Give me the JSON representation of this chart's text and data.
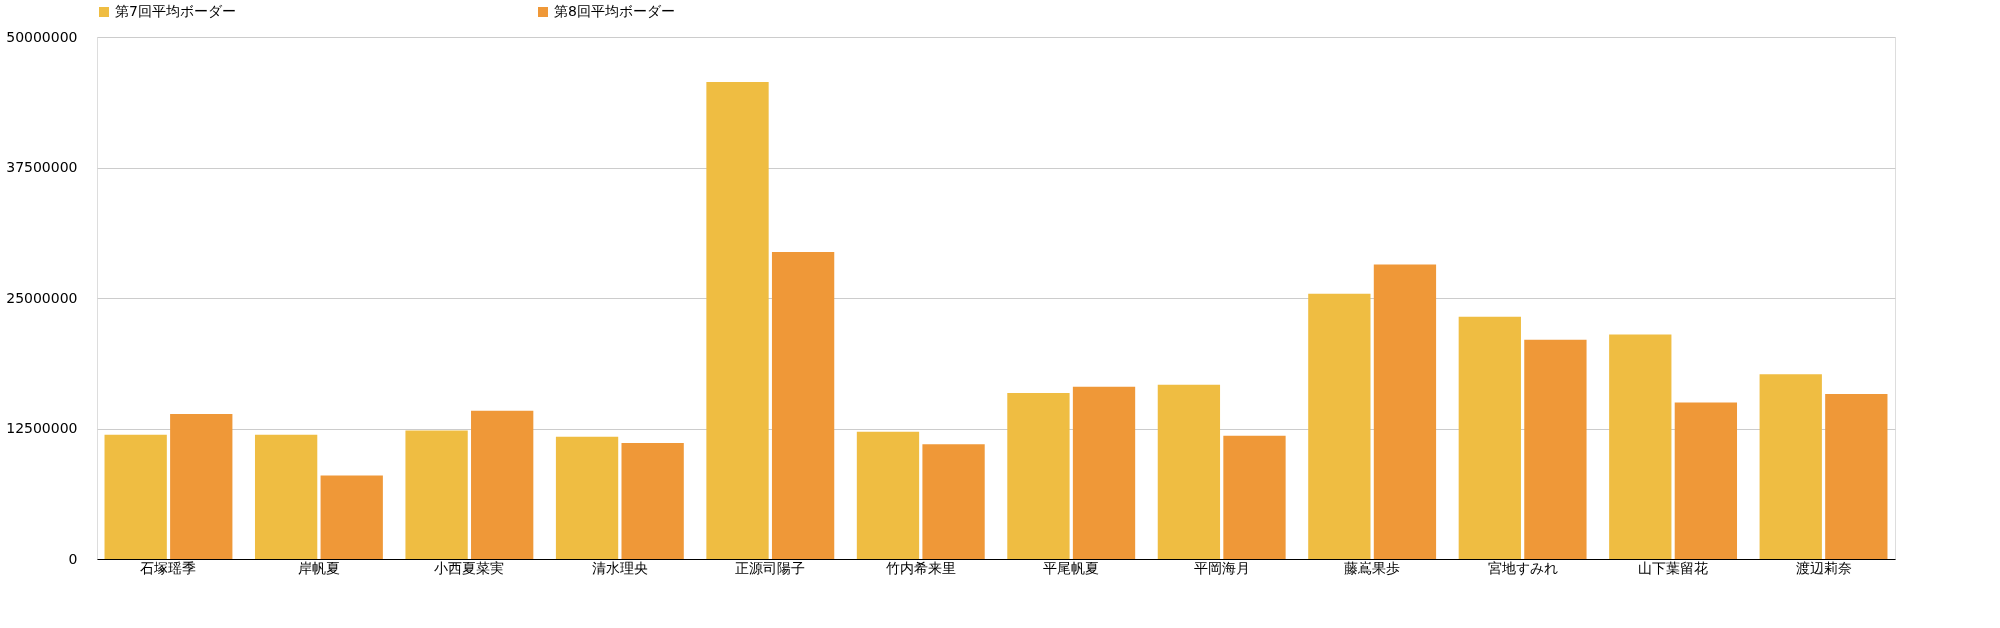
{
  "chart_data": {
    "type": "bar",
    "categories": [
      "石塚瑶季",
      "岸帆夏",
      "小西夏菜実",
      "清水理央",
      "正源司陽子",
      "竹内希来里",
      "平尾帆夏",
      "平岡海月",
      "藤嶌果歩",
      "宮地すみれ",
      "山下葉留花",
      "渡辺莉奈"
    ],
    "series": [
      {
        "name": "第7回平均ボーダー",
        "color": "#efbd42",
        "values": [
          11900000,
          11900000,
          12300000,
          11700000,
          45700000,
          12200000,
          15900000,
          16700000,
          25400000,
          23200000,
          21500000,
          17700000
        ]
      },
      {
        "name": "第8回平均ボーダー",
        "color": "#ef9838",
        "values": [
          13900000,
          8000000,
          14200000,
          11100000,
          29400000,
          11000000,
          16500000,
          11800000,
          28200000,
          21000000,
          15000000,
          15800000
        ]
      }
    ],
    "ylim": [
      0,
      50000000
    ],
    "yticks": [
      0,
      12500000,
      25000000,
      37500000,
      50000000
    ],
    "grid": "y",
    "legend": "top"
  }
}
